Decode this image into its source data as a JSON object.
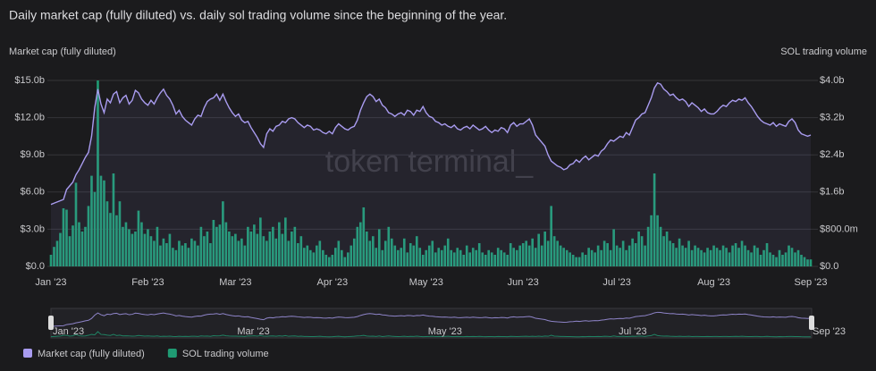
{
  "chart_data": {
    "type": "bar-line",
    "title": "Daily market cap (fully diluted) vs. daily sol trading volume since the beginning of the year.",
    "ylabel": "Market cap (fully diluted)",
    "y2label": "SOL trading volume",
    "watermark": "token terminal_",
    "categories": [
      "Jan '23",
      null,
      null,
      null,
      null,
      null,
      null,
      null,
      null,
      null,
      null,
      null,
      null,
      null,
      null,
      null,
      null,
      null,
      null,
      null,
      null,
      null,
      null,
      null,
      null,
      null,
      null,
      null,
      null,
      null,
      null,
      "Feb '23",
      null,
      null,
      null,
      null,
      null,
      null,
      null,
      null,
      null,
      null,
      null,
      null,
      null,
      null,
      null,
      null,
      null,
      null,
      null,
      null,
      null,
      null,
      null,
      null,
      null,
      null,
      null,
      "Mar '23",
      null,
      null,
      null,
      null,
      null,
      null,
      null,
      null,
      null,
      null,
      null,
      null,
      null,
      null,
      null,
      null,
      null,
      null,
      null,
      null,
      null,
      null,
      null,
      null,
      null,
      null,
      null,
      null,
      null,
      null,
      "Apr '23",
      null,
      null,
      null,
      null,
      null,
      null,
      null,
      null,
      null,
      null,
      null,
      null,
      null,
      null,
      null,
      null,
      null,
      null,
      null,
      null,
      null,
      null,
      null,
      null,
      null,
      null,
      null,
      null,
      null,
      "May '23",
      null,
      null,
      null,
      null,
      null,
      null,
      null,
      null,
      null,
      null,
      null,
      null,
      null,
      null,
      null,
      null,
      null,
      null,
      null,
      null,
      null,
      null,
      null,
      null,
      null,
      null,
      null,
      null,
      null,
      null,
      "Jun '23",
      null,
      null,
      null,
      null,
      null,
      null,
      null,
      null,
      null,
      null,
      null,
      null,
      null,
      null,
      null,
      null,
      null,
      null,
      null,
      null,
      null,
      null,
      null,
      null,
      null,
      null,
      null,
      null,
      null,
      "Jul '23",
      null,
      null,
      null,
      null,
      null,
      null,
      null,
      null,
      null,
      null,
      null,
      null,
      null,
      null,
      null,
      null,
      null,
      null,
      null,
      null,
      null,
      null,
      null,
      null,
      null,
      null,
      null,
      null,
      null,
      null,
      "Aug '23",
      null,
      null,
      null,
      null,
      null,
      null,
      null,
      null,
      null,
      null,
      null,
      null,
      null,
      null,
      null,
      null,
      null,
      null,
      null,
      null,
      null,
      null,
      null,
      null,
      null,
      null,
      null,
      null,
      null,
      null,
      "Sep '23"
    ],
    "series": [
      {
        "name": "Market cap (fully diluted)",
        "color": "#a99cf0",
        "type": "line",
        "axis": "y",
        "values": [
          5.0,
          5.1,
          5.2,
          5.3,
          5.4,
          6.2,
          6.5,
          6.8,
          7.4,
          7.8,
          8.3,
          8.8,
          9.2,
          10.5,
          12.8,
          14.3,
          13.1,
          12.4,
          13.5,
          13.2,
          13.9,
          14.1,
          13.2,
          13.6,
          13.8,
          13.1,
          13.4,
          14.2,
          14.0,
          13.5,
          13.2,
          13.0,
          13.4,
          13.1,
          13.6,
          14.0,
          14.3,
          13.8,
          13.5,
          13.0,
          12.3,
          12.6,
          12.1,
          11.8,
          11.6,
          11.4,
          11.9,
          12.2,
          12.1,
          12.8,
          13.3,
          13.5,
          13.6,
          13.9,
          13.4,
          13.9,
          13.3,
          12.8,
          12.4,
          12.1,
          12.3,
          11.8,
          11.6,
          11.7,
          11.2,
          10.8,
          10.4,
          9.9,
          9.6,
          10.7,
          11.1,
          10.9,
          11.3,
          11.4,
          11.7,
          11.6,
          11.9,
          12.0,
          11.9,
          11.6,
          11.4,
          11.2,
          11.4,
          11.3,
          11.0,
          11.1,
          11.0,
          10.8,
          10.7,
          10.9,
          10.7,
          11.2,
          11.5,
          11.3,
          11.1,
          11.0,
          11.2,
          11.3,
          11.8,
          12.6,
          13.2,
          13.7,
          13.9,
          13.7,
          13.3,
          13.5,
          13.0,
          12.8,
          12.4,
          12.3,
          12.1,
          12.3,
          12.4,
          12.2,
          12.6,
          12.5,
          12.2,
          12.6,
          12.5,
          12.9,
          12.4,
          12.1,
          12.0,
          11.7,
          11.6,
          11.4,
          11.5,
          11.3,
          11.2,
          11.4,
          11.1,
          11.0,
          11.2,
          11.3,
          11.1,
          11.4,
          11.2,
          11.0,
          11.1,
          11.3,
          11.0,
          10.8,
          11.0,
          10.9,
          11.2,
          11.1,
          10.8,
          11.4,
          11.6,
          11.3,
          11.5,
          11.5,
          11.7,
          11.9,
          11.4,
          10.6,
          10.3,
          10.0,
          9.7,
          9.0,
          8.5,
          8.3,
          8.1,
          8.0,
          7.8,
          7.9,
          8.2,
          8.3,
          8.6,
          8.4,
          8.7,
          8.9,
          8.6,
          8.8,
          9.0,
          8.9,
          9.3,
          9.5,
          9.9,
          10.2,
          10.1,
          10.3,
          10.5,
          10.4,
          10.8,
          10.6,
          11.2,
          11.8,
          12.0,
          12.3,
          12.4,
          13.0,
          13.6,
          14.4,
          14.8,
          14.7,
          14.3,
          14.1,
          13.8,
          13.9,
          13.6,
          13.4,
          13.5,
          13.3,
          12.9,
          13.2,
          13.0,
          12.8,
          12.5,
          12.7,
          12.4,
          12.3,
          12.3,
          12.5,
          12.8,
          13.0,
          12.9,
          13.2,
          13.4,
          13.3,
          13.5,
          13.4,
          13.6,
          13.2,
          12.9,
          12.5,
          12.1,
          11.8,
          11.6,
          11.5,
          11.4,
          11.6,
          11.3,
          11.5,
          11.4,
          11.3,
          11.7,
          11.9,
          11.6,
          11.0,
          10.7,
          10.6,
          10.5,
          10.6
        ]
      },
      {
        "name": "SOL trading volume",
        "color": "#1f9b73",
        "type": "bar",
        "axis": "y2",
        "values": [
          0.25,
          0.42,
          0.55,
          0.72,
          1.25,
          1.22,
          0.65,
          0.88,
          1.8,
          0.95,
          0.75,
          0.85,
          1.3,
          1.95,
          1.6,
          4.0,
          1.95,
          1.85,
          1.4,
          1.15,
          2.0,
          1.1,
          1.4,
          0.85,
          0.95,
          0.8,
          0.7,
          0.75,
          1.2,
          0.95,
          0.7,
          0.8,
          0.65,
          0.55,
          0.85,
          0.45,
          0.6,
          0.5,
          0.7,
          0.4,
          0.35,
          0.55,
          0.45,
          0.5,
          0.4,
          0.6,
          0.55,
          0.45,
          0.85,
          0.65,
          0.75,
          0.5,
          1.0,
          0.85,
          0.9,
          1.4,
          0.95,
          0.75,
          0.65,
          0.7,
          0.55,
          0.6,
          0.45,
          0.85,
          0.75,
          0.9,
          0.7,
          1.05,
          0.65,
          0.55,
          0.75,
          0.85,
          0.6,
          0.95,
          0.7,
          1.05,
          0.55,
          0.75,
          0.85,
          0.5,
          0.65,
          0.4,
          0.45,
          0.35,
          0.3,
          0.45,
          0.55,
          0.35,
          0.25,
          0.2,
          0.25,
          0.4,
          0.55,
          0.35,
          0.2,
          0.3,
          0.45,
          0.6,
          0.85,
          0.95,
          1.27,
          0.75,
          0.55,
          0.65,
          0.4,
          0.8,
          0.35,
          0.55,
          0.85,
          0.6,
          0.45,
          0.35,
          0.4,
          0.6,
          0.3,
          0.5,
          0.45,
          0.65,
          0.4,
          0.25,
          0.35,
          0.45,
          0.55,
          0.3,
          0.4,
          0.35,
          0.45,
          0.6,
          0.35,
          0.3,
          0.4,
          0.35,
          0.25,
          0.45,
          0.3,
          0.4,
          0.35,
          0.5,
          0.3,
          0.25,
          0.35,
          0.3,
          0.25,
          0.4,
          0.35,
          0.3,
          0.25,
          0.5,
          0.4,
          0.35,
          0.45,
          0.5,
          0.55,
          0.45,
          0.6,
          0.4,
          0.7,
          0.45,
          0.75,
          0.55,
          1.3,
          0.65,
          0.55,
          0.45,
          0.4,
          0.35,
          0.3,
          0.25,
          0.2,
          0.2,
          0.3,
          0.25,
          0.4,
          0.35,
          0.3,
          0.45,
          0.35,
          0.55,
          0.5,
          0.35,
          0.8,
          0.45,
          0.4,
          0.55,
          0.35,
          0.45,
          0.6,
          0.5,
          0.75,
          0.65,
          0.45,
          0.85,
          1.1,
          2.0,
          1.1,
          0.85,
          0.65,
          0.75,
          0.55,
          0.5,
          0.4,
          0.6,
          0.45,
          0.4,
          0.55,
          0.35,
          0.45,
          0.4,
          0.35,
          0.3,
          0.4,
          0.35,
          0.45,
          0.4,
          0.35,
          0.45,
          0.4,
          0.3,
          0.45,
          0.5,
          0.4,
          0.55,
          0.45,
          0.35,
          0.3,
          0.45,
          0.4,
          0.25,
          0.35,
          0.5,
          0.3,
          0.25,
          0.2,
          0.35,
          0.25,
          0.3,
          0.45,
          0.4,
          0.3,
          0.35,
          0.25,
          0.2,
          0.15,
          0.15
        ]
      }
    ],
    "ylim": [
      0,
      15
    ],
    "yticks": [
      {
        "value": 0,
        "label": "$0.0"
      },
      {
        "value": 3,
        "label": "$3.0b"
      },
      {
        "value": 6,
        "label": "$6.0b"
      },
      {
        "value": 9,
        "label": "$9.0b"
      },
      {
        "value": 12,
        "label": "$12.0b"
      },
      {
        "value": 15,
        "label": "$15.0b"
      }
    ],
    "y2lim": [
      0,
      4
    ],
    "y2ticks": [
      {
        "value": 0,
        "label": "$0.0"
      },
      {
        "value": 0.8,
        "label": "$800.0m"
      },
      {
        "value": 1.6,
        "label": "$1.6b"
      },
      {
        "value": 2.4,
        "label": "$2.4b"
      },
      {
        "value": 3.2,
        "label": "$3.2b"
      },
      {
        "value": 4,
        "label": "$4.0b"
      }
    ],
    "grid": true,
    "legend": "bottom-left"
  }
}
